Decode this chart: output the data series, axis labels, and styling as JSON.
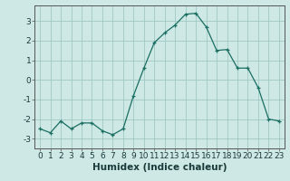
{
  "x": [
    0,
    1,
    2,
    3,
    4,
    5,
    6,
    7,
    8,
    9,
    10,
    11,
    12,
    13,
    14,
    15,
    16,
    17,
    18,
    19,
    20,
    21,
    22,
    23
  ],
  "y": [
    -2.5,
    -2.7,
    -2.1,
    -2.5,
    -2.2,
    -2.2,
    -2.6,
    -2.8,
    -2.5,
    -0.8,
    0.6,
    1.9,
    2.4,
    2.8,
    3.35,
    3.4,
    2.7,
    1.5,
    1.55,
    0.6,
    0.6,
    -0.4,
    -2.0,
    -2.1
  ],
  "xlabel": "Humidex (Indice chaleur)",
  "ylim": [
    -3.5,
    3.8
  ],
  "xlim": [
    -0.5,
    23.5
  ],
  "yticks": [
    -3,
    -2,
    -1,
    0,
    1,
    2,
    3
  ],
  "xticks": [
    0,
    1,
    2,
    3,
    4,
    5,
    6,
    7,
    8,
    9,
    10,
    11,
    12,
    13,
    14,
    15,
    16,
    17,
    18,
    19,
    20,
    21,
    22,
    23
  ],
  "line_color": "#1a6e62",
  "marker": "+",
  "bg_color": "#cde8e5",
  "grid_color": "#a0c8c4",
  "xlabel_fontsize": 7.5,
  "tick_fontsize": 6.5
}
